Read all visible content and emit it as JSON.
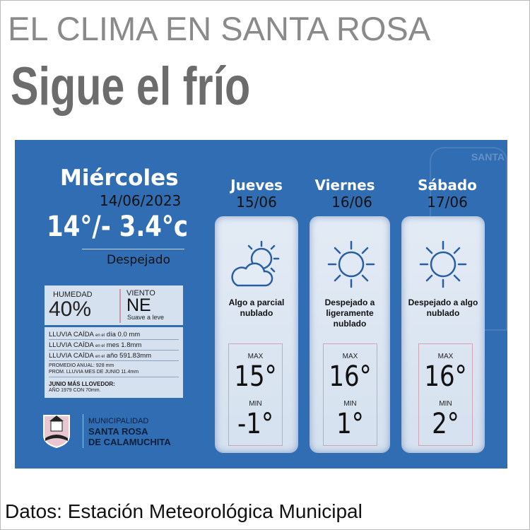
{
  "header": {
    "kicker": "EL CLIMA EN SANTA ROSA",
    "headline": "Sigue el frío"
  },
  "today": {
    "day": "Miércoles",
    "date": "14/06/2023",
    "temp": "14°/- 3.4°c",
    "condition": "Despejado",
    "humidity_label": "HUMEDAD",
    "humidity": "40%",
    "wind_label": "VIENTO",
    "wind_dir": "NE",
    "wind_desc": "Suave a leve"
  },
  "rain": {
    "lines": [
      {
        "label": "LLUVIA CAÍDA",
        "connector": "en el",
        "period": "día",
        "value": "0.0 mm"
      },
      {
        "label": "LLUVIA CAÍDA",
        "connector": "en el",
        "period": "mes",
        "value": "1.8mm"
      },
      {
        "label": "LLUVIA CAÍDA",
        "connector": "en el",
        "period": "año",
        "value": "591.83mm"
      }
    ],
    "annual_avg": "PROMEDIO ANUAL: 928 mm",
    "june_avg": "PROM. LLUVIA MES DE JUNIO 11.4mm",
    "wettest_title": "JUNIO MÁS LLOVEDOR:",
    "wettest_value": "AÑO 1979 CON 70mm."
  },
  "logo": {
    "line1": "MUNICIPALIDAD",
    "line2": "SANTA ROSA",
    "line3": "DE CALAMUCHITA"
  },
  "watermark": "SANTA",
  "forecast": [
    {
      "day": "Jueves",
      "date": "15/06",
      "icon": "partly-cloudy-icon",
      "condition": "Algo a parcial nublado",
      "max_label": "MAX",
      "max": "15°",
      "min_label": "MIN",
      "min": "-1°"
    },
    {
      "day": "Viernes",
      "date": "16/06",
      "icon": "sun-icon",
      "condition": "Despejado a ligeramente nublado",
      "max_label": "MAX",
      "max": "16°",
      "min_label": "MIN",
      "min": "1°"
    },
    {
      "day": "Sábado",
      "date": "17/06",
      "icon": "sun-icon",
      "condition": "Despejado a algo nublado",
      "max_label": "MAX",
      "max": "16°",
      "min_label": "MIN",
      "min": "2°"
    }
  ],
  "caption": "Datos: Estación Meteorológica Municipal",
  "colors": {
    "panel": "#316db2",
    "card": "#dfe8f3",
    "title": "#8a8a8a"
  }
}
